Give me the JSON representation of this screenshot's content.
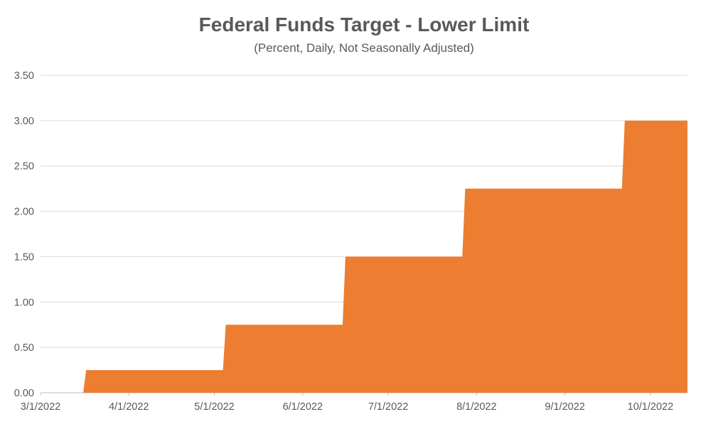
{
  "page": {
    "background": "#ffffff"
  },
  "chart_data": {
    "type": "area",
    "title": "Federal Funds Target - Lower Limit",
    "subtitle": "(Percent, Daily, Not Seasonally Adjusted)",
    "xlabel": "",
    "ylabel": "",
    "legend": "none",
    "grid": "horizontal",
    "ylim": [
      0,
      3.5
    ],
    "y_tick_step": 0.5,
    "y_tick_labels": [
      "0.00",
      "0.50",
      "1.00",
      "1.50",
      "2.00",
      "2.50",
      "3.00",
      "3.50"
    ],
    "x_tick_labels": [
      "3/1/2022",
      "4/1/2022",
      "5/1/2022",
      "6/1/2022",
      "7/1/2022",
      "8/1/2022",
      "9/1/2022",
      "10/1/2022"
    ],
    "x_range": {
      "start": "3/1/2022",
      "end": "10/14/2022"
    },
    "series": [
      {
        "name": "Federal Funds Target - Lower Limit",
        "unit": "percent",
        "step_points": [
          {
            "date": "3/1/2022",
            "value": 0.0
          },
          {
            "date": "3/17/2022",
            "value": 0.25
          },
          {
            "date": "5/5/2022",
            "value": 0.75
          },
          {
            "date": "6/16/2022",
            "value": 1.5
          },
          {
            "date": "7/28/2022",
            "value": 2.25
          },
          {
            "date": "9/22/2022",
            "value": 3.0
          }
        ],
        "end_date": "10/14/2022",
        "end_value": 3.0
      }
    ],
    "colors": {
      "area": "#ED7D31",
      "gridline": "#D9D9D9",
      "axis_line": "#BFBFBF",
      "tick": "#BFBFBF",
      "text": "#595959"
    }
  }
}
